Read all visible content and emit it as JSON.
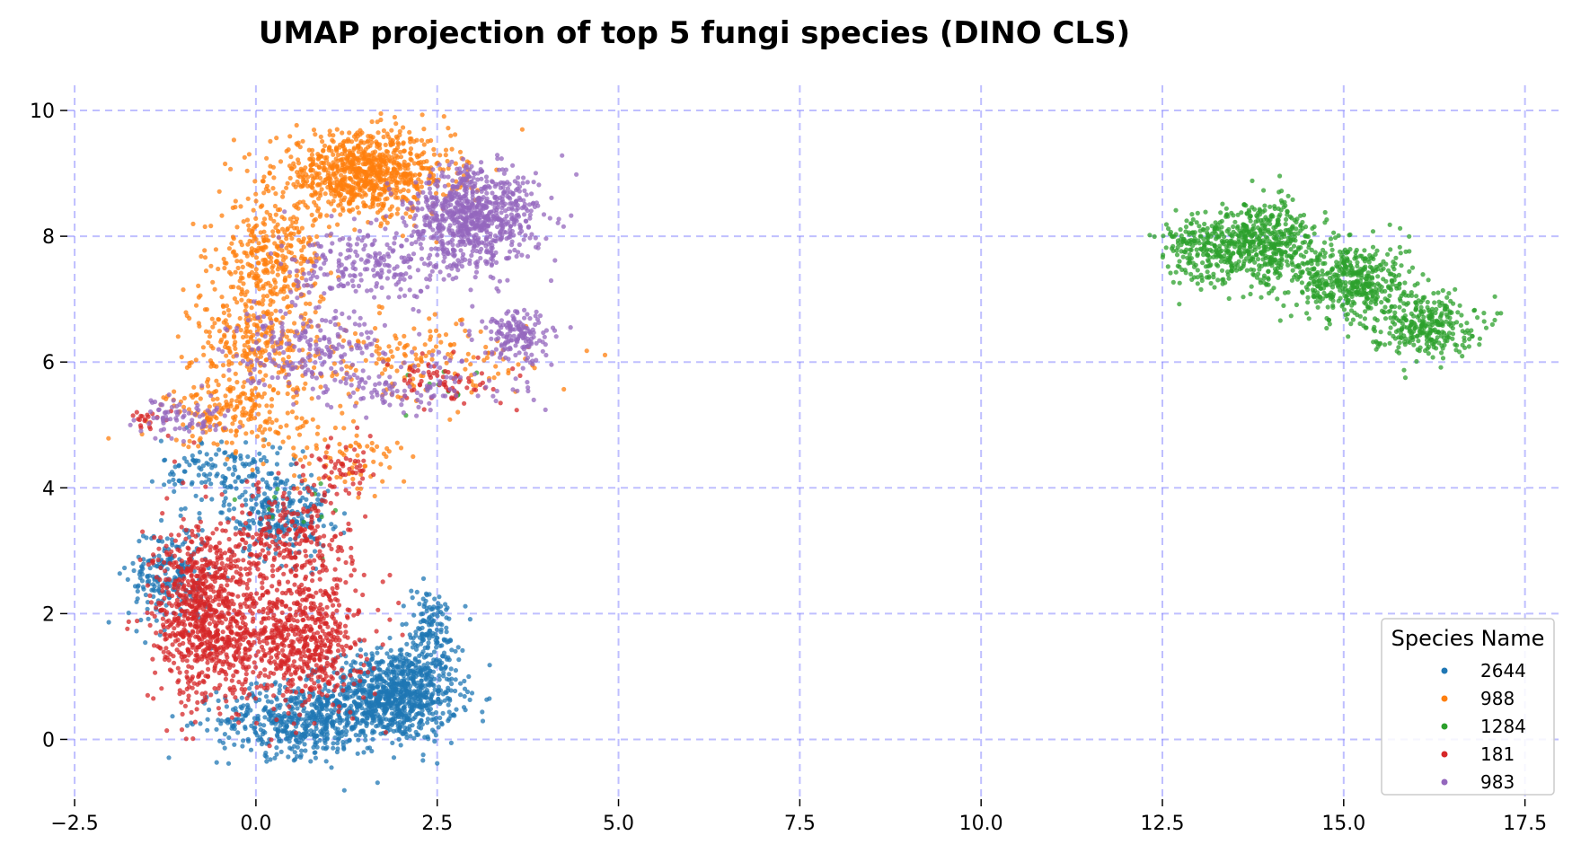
{
  "chart_data": {
    "type": "scatter",
    "title": "UMAP projection of top 5 fungi species (DINO CLS)",
    "xlabel": "",
    "ylabel": "",
    "xlim": [
      -2.6,
      18.0
    ],
    "ylim": [
      -0.95,
      10.4
    ],
    "xticks": [
      -2.5,
      0.0,
      2.5,
      5.0,
      7.5,
      10.0,
      12.5,
      15.0,
      17.5
    ],
    "xtick_labels": [
      "−2.5",
      "0.0",
      "2.5",
      "5.0",
      "7.5",
      "10.0",
      "12.5",
      "15.0",
      "17.5"
    ],
    "yticks": [
      0,
      2,
      4,
      6,
      8,
      10
    ],
    "ytick_labels": [
      "0",
      "2",
      "4",
      "6",
      "8",
      "10"
    ],
    "grid": true,
    "grid_color": "#8080ff",
    "legend": {
      "title": "Species Name",
      "placement": "lower-right"
    },
    "series": [
      {
        "name": "2644",
        "color": "#1f77b4",
        "clusters": [
          {
            "cx": 1.9,
            "cy": 0.7,
            "sx": 0.55,
            "sy": 0.45,
            "n": 900
          },
          {
            "cx": 0.6,
            "cy": 0.3,
            "sx": 0.7,
            "sy": 0.35,
            "n": 500
          },
          {
            "cx": -1.2,
            "cy": 2.6,
            "sx": 0.35,
            "sy": 0.5,
            "n": 220
          },
          {
            "cx": 0.3,
            "cy": 3.6,
            "sx": 0.45,
            "sy": 0.45,
            "n": 260
          },
          {
            "cx": -0.5,
            "cy": 4.3,
            "sx": 0.5,
            "sy": 0.3,
            "n": 120
          },
          {
            "cx": 2.4,
            "cy": 1.7,
            "sx": 0.25,
            "sy": 0.45,
            "n": 150
          }
        ]
      },
      {
        "name": "988",
        "color": "#ff7f0e",
        "clusters": [
          {
            "cx": 1.5,
            "cy": 9.0,
            "sx": 0.75,
            "sy": 0.4,
            "n": 900
          },
          {
            "cx": 0.2,
            "cy": 7.6,
            "sx": 0.45,
            "sy": 0.6,
            "n": 350
          },
          {
            "cx": 0.0,
            "cy": 6.3,
            "sx": 0.55,
            "sy": 0.55,
            "n": 250
          },
          {
            "cx": -0.3,
            "cy": 5.2,
            "sx": 0.6,
            "sy": 0.35,
            "n": 200
          },
          {
            "cx": 2.2,
            "cy": 6.0,
            "sx": 1.0,
            "sy": 0.4,
            "n": 160
          },
          {
            "cx": 1.2,
            "cy": 4.5,
            "sx": 0.6,
            "sy": 0.4,
            "n": 80
          }
        ]
      },
      {
        "name": "1284",
        "color": "#2ca02c",
        "clusters": [
          {
            "cx": 13.8,
            "cy": 7.9,
            "sx": 0.55,
            "sy": 0.4,
            "n": 550
          },
          {
            "cx": 15.1,
            "cy": 7.3,
            "sx": 0.5,
            "sy": 0.4,
            "n": 450
          },
          {
            "cx": 16.1,
            "cy": 6.6,
            "sx": 0.45,
            "sy": 0.3,
            "n": 300
          },
          {
            "cx": 12.9,
            "cy": 7.8,
            "sx": 0.3,
            "sy": 0.35,
            "n": 120
          },
          {
            "cx": 0.6,
            "cy": 3.7,
            "sx": 0.4,
            "sy": 0.3,
            "n": 12
          },
          {
            "cx": 2.5,
            "cy": 5.6,
            "sx": 0.5,
            "sy": 0.2,
            "n": 10
          }
        ]
      },
      {
        "name": "181",
        "color": "#d62728",
        "clusters": [
          {
            "cx": -0.7,
            "cy": 2.0,
            "sx": 0.45,
            "sy": 0.9,
            "n": 850
          },
          {
            "cx": 0.6,
            "cy": 1.6,
            "sx": 0.55,
            "sy": 0.65,
            "n": 650
          },
          {
            "cx": 0.5,
            "cy": 3.2,
            "sx": 0.5,
            "sy": 0.5,
            "n": 220
          },
          {
            "cx": 1.2,
            "cy": 4.3,
            "sx": 0.3,
            "sy": 0.3,
            "n": 60
          },
          {
            "cx": 2.6,
            "cy": 5.7,
            "sx": 0.6,
            "sy": 0.25,
            "n": 70
          },
          {
            "cx": -1.4,
            "cy": 5.1,
            "sx": 0.2,
            "sy": 0.12,
            "n": 20
          }
        ]
      },
      {
        "name": "983",
        "color": "#9467bd",
        "clusters": [
          {
            "cx": 3.0,
            "cy": 8.3,
            "sx": 0.55,
            "sy": 0.5,
            "n": 800
          },
          {
            "cx": 3.6,
            "cy": 6.4,
            "sx": 0.3,
            "sy": 0.25,
            "n": 160
          },
          {
            "cx": 1.6,
            "cy": 7.5,
            "sx": 0.7,
            "sy": 0.35,
            "n": 220
          },
          {
            "cx": 0.7,
            "cy": 6.3,
            "sx": 0.7,
            "sy": 0.4,
            "n": 200
          },
          {
            "cx": -1.0,
            "cy": 5.1,
            "sx": 0.4,
            "sy": 0.2,
            "n": 80
          },
          {
            "cx": 2.2,
            "cy": 5.6,
            "sx": 1.0,
            "sy": 0.3,
            "n": 120
          }
        ]
      }
    ]
  }
}
